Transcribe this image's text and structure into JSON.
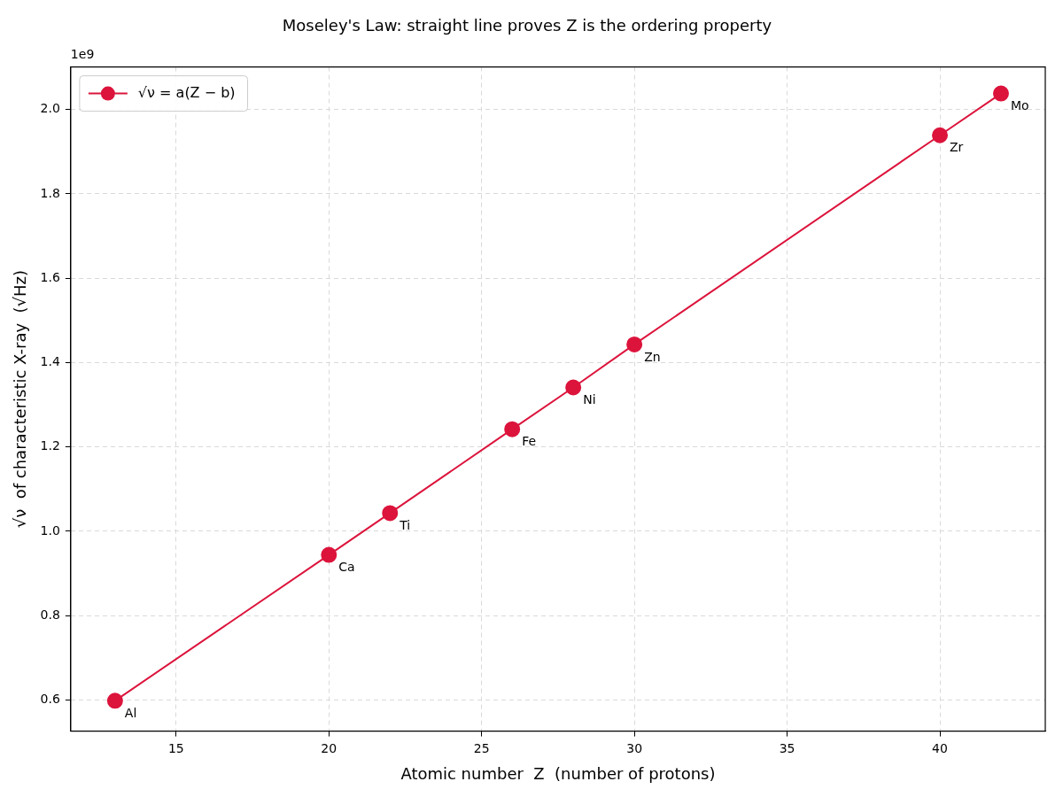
{
  "chart_data": {
    "type": "line",
    "title": "Moseley's Law: straight line proves Z is the ordering property",
    "xlabel": "Atomic number  Z  (number of protons)",
    "ylabel": "√ν  of characteristic X-ray  (√Hz)",
    "x": [
      13,
      20,
      22,
      26,
      28,
      30,
      40,
      42
    ],
    "series": [
      {
        "name": "√ν = a(Z − b)",
        "color": "#dc143c",
        "values": [
          0.598,
          0.944,
          1.043,
          1.242,
          1.341,
          1.443,
          1.939,
          2.038
        ]
      }
    ],
    "xlim": [
      11.55,
      43.45
    ],
    "xticks": [
      15,
      20,
      25,
      30,
      35,
      40
    ],
    "ylim": [
      0.526,
      2.101
    ],
    "yticks": [
      0.6,
      0.8,
      {
        "value": 1,
        "label": "1.0"
      },
      1.2,
      1.4,
      1.6,
      1.8,
      {
        "value": 2,
        "label": "2.0"
      }
    ],
    "grid": true,
    "legend": "top left",
    "marker": "circle",
    "line_style": "solid",
    "annotations": [
      "1e9",
      {
        "text": "Al",
        "x": 13,
        "y": 0.598
      },
      {
        "text": "Ca",
        "x": 20,
        "y": 0.944
      },
      {
        "text": "Ti",
        "x": 22,
        "y": 1.043
      },
      {
        "text": "Fe",
        "x": 26,
        "y": 1.242
      },
      {
        "text": "Ni",
        "x": 28,
        "y": 1.341
      },
      {
        "text": "Zn",
        "x": 30,
        "y": 1.443
      },
      {
        "text": "Zr",
        "x": 40,
        "y": 1.939
      },
      {
        "text": "Mo",
        "x": 42,
        "y": 2.038
      }
    ]
  }
}
